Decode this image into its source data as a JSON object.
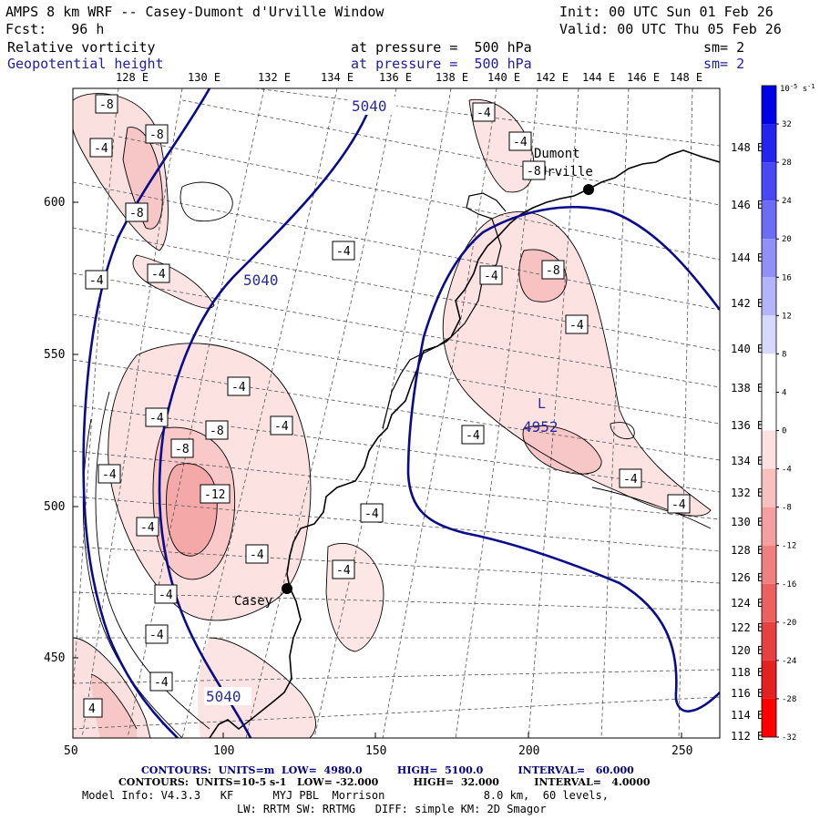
{
  "header": {
    "title": "AMPS 8 km WRF -- Casey-Dumont d'Urville Window",
    "init": "Init: 00 UTC Sun 01 Feb 26",
    "fcst": "Fcst:   96 h",
    "valid": "Valid: 00 UTC Thu 05 Feb 26",
    "field1_name": "Relative vorticity",
    "field1_level": "at pressure =  500 hPa",
    "field1_sm": "sm= 2",
    "field2_name": "Geopotential height",
    "field2_level": "at pressure =  500 hPa",
    "field2_sm": "sm= 2"
  },
  "map": {
    "top_lon_labels": [
      "128 E",
      "130 E",
      "132 E",
      "134 E",
      "136 E",
      "138 E",
      "140 E",
      "142 E",
      "144 E",
      "146 E",
      "148 E"
    ],
    "right_lat_labels": [
      "148 E",
      "146 E",
      "144 E",
      "142 E",
      "140 E",
      "138 E",
      "136 E",
      "134 E",
      "132 E",
      "130 E",
      "128 E",
      "126 E",
      "124 E",
      "122 E",
      "120 E",
      "118 E",
      "116 E",
      "114 E",
      "112 E"
    ],
    "x_axis_ticks": [
      "50",
      "100",
      "150",
      "200",
      "250"
    ],
    "y_axis_ticks": [
      "600",
      "550",
      "500",
      "450"
    ],
    "height_labels": [
      "5040",
      "5040",
      "5040",
      "4952"
    ],
    "low_marker": "L",
    "stations": [
      {
        "name": "Casey"
      },
      {
        "name": "Dumont\nd'Urville"
      }
    ],
    "vort_labels": [
      "-8",
      "-8",
      "-4",
      "-8",
      "-4",
      "-4",
      "-4",
      "-4",
      "-4",
      "-8",
      "-8",
      "-4",
      "-12",
      "-4",
      "-4",
      "-4",
      "-4",
      "-4",
      "-4",
      "-4",
      "-4",
      "-4",
      "-8",
      "-4",
      "-4",
      "-4",
      "-4",
      "-4",
      "-4",
      "-8",
      "4"
    ]
  },
  "colorbar": {
    "unit": "10",
    "unit_exp": "-5",
    "unit_suffix": " s",
    "unit_exp2": "-1",
    "labels": [
      "32",
      "28",
      "24",
      "20",
      "16",
      "12",
      "8",
      "4",
      "0",
      "-4",
      "-8",
      "-12",
      "-16",
      "-20",
      "-24",
      "-28",
      "-32"
    ],
    "colors": [
      "#0000e8",
      "#2424f0",
      "#4848f4",
      "#6c6cf6",
      "#9090f8",
      "#b4b4fa",
      "#d8d8fc",
      "#ffffff",
      "#ffffff",
      "#fde0e0",
      "#f9c0c0",
      "#f5a0a0",
      "#f08080",
      "#ec6060",
      "#e84040",
      "#e42020",
      "#ff0000"
    ]
  },
  "footer": {
    "line1": "CONTOURS:  UNITS=m  LOW=  4980.0          HIGH=  5100.0          INTERVAL=   60.000",
    "line2": "CONTOURS:  UNITS=10-5 s-1   LOW= -32.000          HIGH=  32.000          INTERVAL=   4.0000",
    "line3": "Model Info: V4.3.3   KF      MYJ PBL  Morrison               8.0 km,  60 levels,",
    "line4": "LW: RRTM SW: RRTMG   DIFF: simple KM: 2D Smagor"
  }
}
